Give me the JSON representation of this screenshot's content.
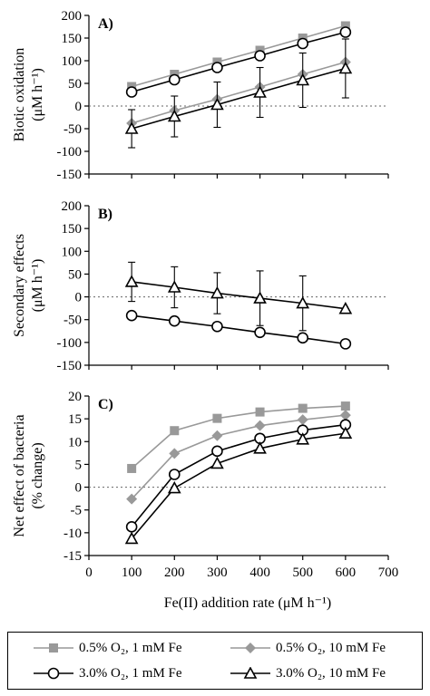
{
  "chart_data": [
    {
      "type": "line",
      "panel_label": "A)",
      "ylabel_lines": [
        "Biotic oxidation",
        "(μM h⁻¹)"
      ],
      "ylim": [
        -150,
        200
      ],
      "yticks": [
        -150,
        -100,
        -50,
        0,
        50,
        100,
        150,
        200
      ],
      "xlim": [
        0,
        700
      ],
      "zero_line": true,
      "x": [
        100,
        200,
        300,
        400,
        500,
        600
      ],
      "series": [
        {
          "name": "0.5% O₂, 1 mM Fe",
          "marker": "square",
          "color": "#999999",
          "values": [
            43,
            70,
            97,
            123,
            150,
            177
          ],
          "errors": [
            0,
            0,
            0,
            0,
            0,
            0
          ]
        },
        {
          "name": "0.5% O₂, 10 mM Fe",
          "marker": "diamond",
          "color": "#999999",
          "values": [
            -38,
            -10,
            15,
            42,
            70,
            97
          ],
          "errors": [
            0,
            0,
            0,
            0,
            0,
            0
          ]
        },
        {
          "name": "3.0% O₂, 1 mM Fe",
          "marker": "circle",
          "color": "#000000",
          "values": [
            31,
            58,
            85,
            111,
            138,
            163
          ],
          "errors": [
            0,
            0,
            0,
            0,
            0,
            0
          ]
        },
        {
          "name": "3.0% O₂, 10 mM Fe",
          "marker": "triangle",
          "color": "#000000",
          "values": [
            -50,
            -23,
            3,
            30,
            57,
            83
          ],
          "errors": [
            42,
            45,
            50,
            55,
            60,
            65
          ]
        }
      ]
    },
    {
      "type": "line",
      "panel_label": "B)",
      "ylabel_lines": [
        "Secondary effects",
        "(μM h⁻¹)"
      ],
      "ylim": [
        -150,
        200
      ],
      "yticks": [
        -150,
        -100,
        -50,
        0,
        50,
        100,
        150,
        200
      ],
      "xlim": [
        0,
        700
      ],
      "zero_line": true,
      "x": [
        100,
        200,
        300,
        400,
        500,
        600
      ],
      "series": [
        {
          "name": "3.0% O₂, 1 mM Fe",
          "marker": "circle",
          "color": "#000000",
          "values": [
            -41,
            -53,
            -65,
            -78,
            -90,
            -103
          ],
          "errors": [
            0,
            0,
            0,
            0,
            0,
            0
          ]
        },
        {
          "name": "3.0% O₂, 10 mM Fe",
          "marker": "triangle",
          "color": "#000000",
          "values": [
            33,
            21,
            8,
            -3,
            -14,
            -26
          ],
          "errors": [
            43,
            45,
            45,
            60,
            60,
            0
          ]
        }
      ]
    },
    {
      "type": "line",
      "panel_label": "C)",
      "ylabel_lines": [
        "Net effect of bacteria",
        "(% change)"
      ],
      "ylim": [
        -15,
        20
      ],
      "yticks": [
        -15,
        -10,
        -5,
        0,
        5,
        10,
        15,
        20
      ],
      "xlim": [
        0,
        700
      ],
      "xticks": [
        0,
        100,
        200,
        300,
        400,
        500,
        600,
        700
      ],
      "xlabel": "Fe(II) addition rate (μM h⁻¹)",
      "zero_line": true,
      "x": [
        100,
        200,
        300,
        400,
        500,
        600
      ],
      "series": [
        {
          "name": "0.5% O₂, 1 mM Fe",
          "marker": "square",
          "color": "#999999",
          "values": [
            4.1,
            12.4,
            15.1,
            16.5,
            17.3,
            17.8
          ]
        },
        {
          "name": "0.5% O₂, 10 mM Fe",
          "marker": "diamond",
          "color": "#999999",
          "values": [
            -2.6,
            7.4,
            11.3,
            13.5,
            14.8,
            15.8
          ]
        },
        {
          "name": "3.0% O₂, 1 mM Fe",
          "marker": "circle",
          "color": "#000000",
          "values": [
            -8.7,
            2.8,
            7.9,
            10.7,
            12.5,
            13.7
          ]
        },
        {
          "name": "3.0% O₂, 10 mM Fe",
          "marker": "triangle",
          "color": "#000000",
          "values": [
            -11.3,
            -0.2,
            5.2,
            8.5,
            10.5,
            11.8
          ]
        }
      ]
    }
  ],
  "legend": [
    {
      "label": "0.5% O₂, 1 mM Fe",
      "marker": "square",
      "color": "#999999"
    },
    {
      "label": "0.5% O₂, 10 mM Fe",
      "marker": "diamond",
      "color": "#999999"
    },
    {
      "label": "3.0% O₂, 1 mM Fe",
      "marker": "circle",
      "color": "#000000"
    },
    {
      "label": "3.0% O₂, 10 mM Fe",
      "marker": "triangle",
      "color": "#000000"
    }
  ]
}
